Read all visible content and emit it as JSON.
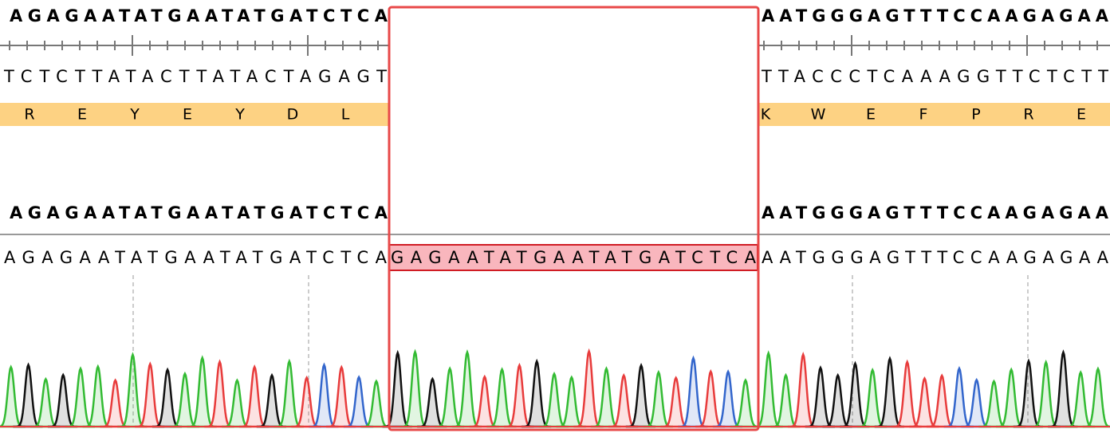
{
  "reference": {
    "top_strand": {
      "left": "AGAGAATATGAATATGATCTCA",
      "right": "AATGGGAGTTTCCAAGAGAA"
    },
    "bottom_strand": {
      "left": "TCTCTTATACTTATACTAGAGT",
      "right": "TTACCCTCAAAGGTTCTCTT"
    }
  },
  "translation": {
    "left": [
      "R",
      "E",
      "Y",
      "E",
      "Y",
      "D",
      "L"
    ],
    "right": [
      "K",
      "W",
      "E",
      "F",
      "P",
      "R",
      "E"
    ]
  },
  "aligned_reference": {
    "left": "AGAGAATATGAATATGATCTCA",
    "right": "AATGGGAGTTTCCAAGAGAA"
  },
  "read": {
    "left": "AGAGAATATGAATATGATCTCA",
    "insertion": "GAGAATATGAATATGATCTCA",
    "right": "AATGGGAGTTTCCAAGAGAA"
  }
}
